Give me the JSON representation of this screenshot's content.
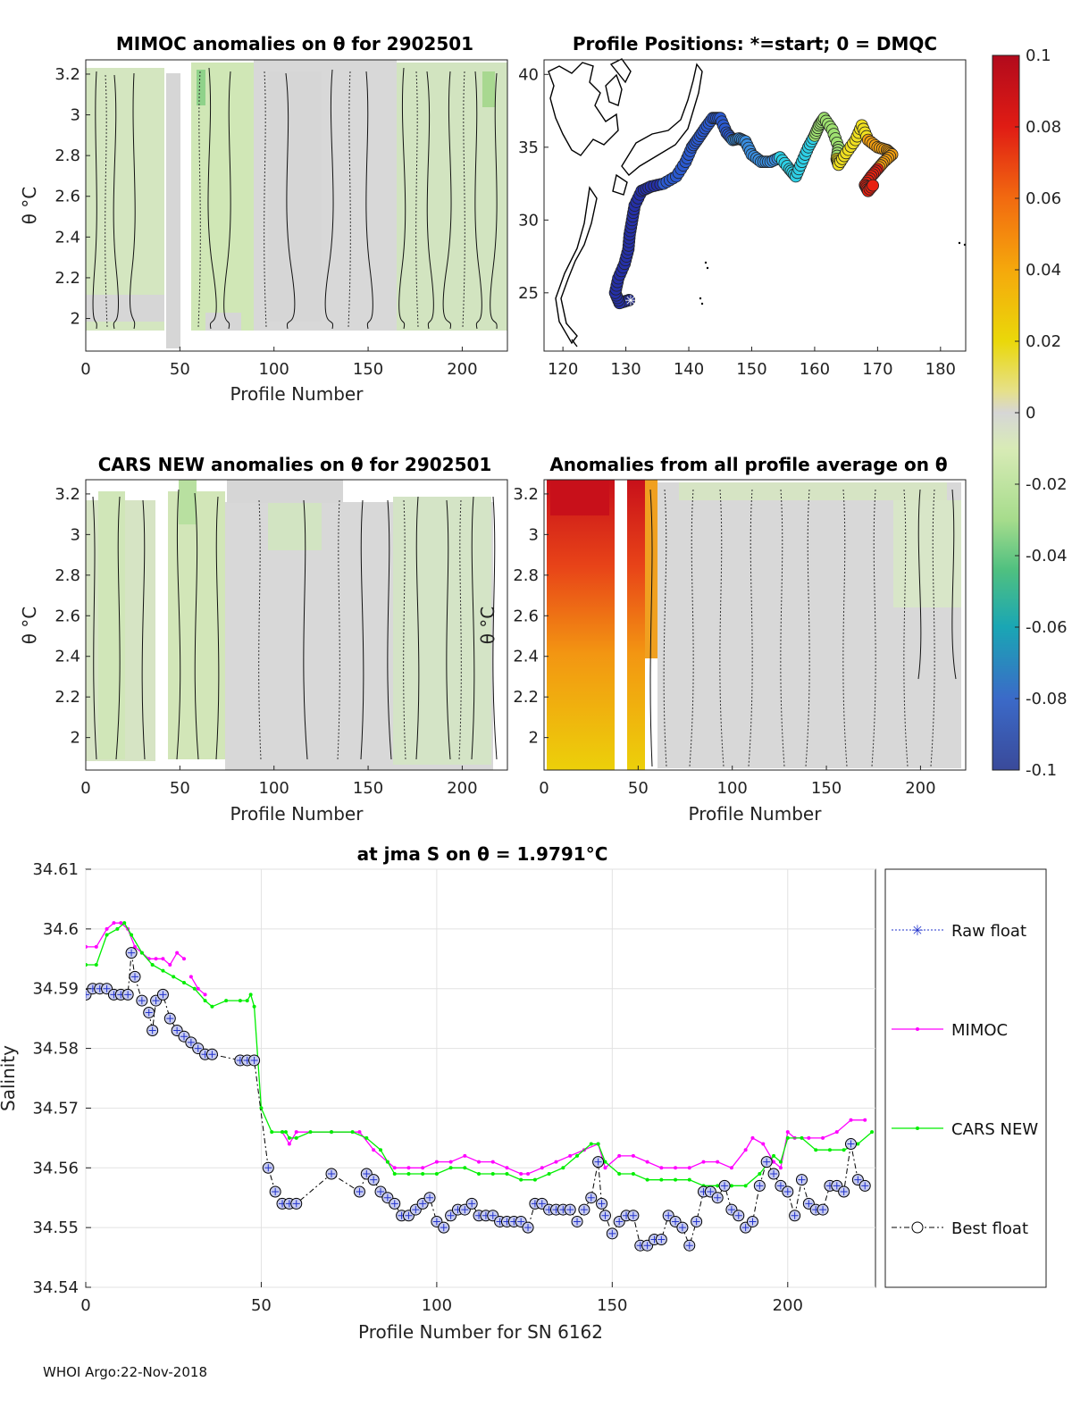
{
  "footer": "WHOI Argo:22-Nov-2018",
  "panels": [
    {
      "title": "MIMOC anomalies on θ  for 2902501",
      "xlabel": "Profile Number",
      "ylabel": "θ °C",
      "xticks": [
        0,
        50,
        100,
        150,
        200
      ],
      "yticks": [
        "3.2",
        "3",
        "2.8",
        "2.6",
        "2.4",
        "2.2",
        "2"
      ],
      "xlim": [
        0,
        224
      ],
      "ylim": [
        1.84,
        3.27
      ]
    },
    {
      "title": "Profile Positions: *=start; 0 = DMQC",
      "xlabel": "",
      "ylabel": "",
      "xticks": [
        120,
        130,
        140,
        150,
        160,
        170,
        180
      ],
      "yticks": [
        "40",
        "35",
        "30",
        "25"
      ],
      "xlim": [
        117,
        184
      ],
      "ylim": [
        21,
        41
      ]
    },
    {
      "title": "CARS NEW anomalies on θ for 2902501",
      "xlabel": "Profile Number",
      "ylabel": "θ °C",
      "xticks": [
        0,
        50,
        100,
        150,
        200
      ],
      "yticks": [
        "3.2",
        "3",
        "2.8",
        "2.6",
        "2.4",
        "2.2",
        "2"
      ],
      "xlim": [
        0,
        224
      ],
      "ylim": [
        1.84,
        3.27
      ]
    },
    {
      "title": "Anomalies from all profile average on θ",
      "xlabel": "Profile Number",
      "ylabel": "θ °C",
      "xticks": [
        0,
        50,
        100,
        150,
        200
      ],
      "yticks": [
        "3.2",
        "3",
        "2.8",
        "2.6",
        "2.4",
        "2.2",
        "2"
      ],
      "xlim": [
        0,
        224
      ],
      "ylim": [
        1.84,
        3.27
      ]
    }
  ],
  "colorbar": {
    "ticks": [
      "0.1",
      "0.08",
      "0.06",
      "0.04",
      "0.02",
      "0",
      "-0.02",
      "-0.04",
      "-0.06",
      "-0.08",
      "-0.1"
    ],
    "range": [
      -0.1,
      0.1
    ]
  },
  "chart_data": {
    "type": "line",
    "title": "at jma S on θ = 1.9791°C",
    "xlabel": "Profile Number for SN 6162",
    "ylabel": "Salinity",
    "xlim": [
      0,
      225
    ],
    "ylim": [
      34.54,
      34.61
    ],
    "xticks": [
      0,
      50,
      100,
      150,
      200
    ],
    "yticks": [
      "34.61",
      "34.6",
      "34.59",
      "34.58",
      "34.57",
      "34.56",
      "34.55",
      "34.54"
    ],
    "grid": true,
    "legend": [
      "Raw float",
      "MIMOC",
      "CARS NEW",
      "Best float"
    ],
    "series": [
      {
        "name": "MIMOC",
        "color": "#ff00ff",
        "x": [
          0,
          3,
          6,
          8,
          10,
          12,
          14,
          16,
          18,
          20,
          22,
          24,
          26,
          28
        ],
        "y": [
          34.597,
          34.597,
          34.6,
          34.601,
          34.601,
          34.6,
          34.597,
          34.596,
          34.595,
          34.595,
          34.595,
          34.594,
          34.596,
          34.595
        ]
      },
      {
        "name": "MIMOC",
        "color": "#ff00ff",
        "x": [
          30,
          32,
          34
        ],
        "y": [
          34.592,
          34.59,
          34.589
        ]
      },
      {
        "name": "MIMOC",
        "color": "#ff00ff",
        "x": [
          56,
          58,
          60,
          70,
          78,
          82,
          86,
          88,
          92,
          96,
          100,
          104,
          108,
          112,
          116,
          120,
          124,
          126,
          130,
          134,
          138,
          142,
          146,
          148,
          152,
          156,
          160,
          164,
          168,
          172,
          176,
          180,
          184,
          188,
          190,
          193,
          196,
          198,
          200,
          202,
          206,
          210,
          214,
          218,
          222
        ],
        "y": [
          34.566,
          34.564,
          34.566,
          34.566,
          34.566,
          34.563,
          34.561,
          34.56,
          34.56,
          34.56,
          34.561,
          34.561,
          34.562,
          34.561,
          34.561,
          34.56,
          34.559,
          34.559,
          34.56,
          34.561,
          34.562,
          34.563,
          34.564,
          34.56,
          34.562,
          34.562,
          34.561,
          34.56,
          34.56,
          34.56,
          34.561,
          34.561,
          34.56,
          34.563,
          34.565,
          34.564,
          34.561,
          34.56,
          34.566,
          34.565,
          34.565,
          34.565,
          34.566,
          34.568,
          34.568
        ]
      },
      {
        "name": "CARS NEW",
        "color": "#00ee00",
        "x": [
          0,
          3,
          6,
          9,
          11,
          13,
          16,
          19,
          22,
          25,
          28,
          31,
          34,
          36,
          40,
          44,
          46,
          47,
          48,
          50,
          53,
          56,
          57,
          58,
          60,
          64,
          70,
          76,
          80,
          84,
          86,
          88,
          92,
          96,
          100,
          104,
          108,
          112,
          116,
          120,
          124,
          128,
          132,
          136,
          140,
          144,
          146,
          148,
          152,
          156,
          160,
          164,
          168,
          172,
          176,
          180,
          184,
          188,
          192,
          196,
          198,
          200,
          204,
          208,
          212,
          216,
          220,
          224
        ],
        "y": [
          34.594,
          34.594,
          34.599,
          34.6,
          34.601,
          34.599,
          34.596,
          34.594,
          34.593,
          34.592,
          34.591,
          34.59,
          34.588,
          34.587,
          34.588,
          34.588,
          34.588,
          34.589,
          34.587,
          34.57,
          34.566,
          34.566,
          34.566,
          34.565,
          34.565,
          34.566,
          34.566,
          34.566,
          34.565,
          34.563,
          34.561,
          34.559,
          34.559,
          34.559,
          34.559,
          34.56,
          34.56,
          34.559,
          34.559,
          34.559,
          34.558,
          34.558,
          34.559,
          34.56,
          34.562,
          34.564,
          34.564,
          34.561,
          34.559,
          34.559,
          34.558,
          34.558,
          34.558,
          34.558,
          34.557,
          34.557,
          34.557,
          34.557,
          34.559,
          34.562,
          34.561,
          34.565,
          34.565,
          34.563,
          34.563,
          34.563,
          34.564,
          34.566
        ]
      },
      {
        "name": "Best float",
        "color": "#000000",
        "x": [
          0,
          2,
          4,
          6,
          8,
          10,
          12,
          13,
          14,
          16,
          18,
          19,
          20,
          22,
          24,
          26,
          28,
          30,
          32,
          34,
          36,
          44,
          46,
          48,
          52,
          54,
          56,
          58,
          60,
          70,
          78,
          80,
          82,
          84,
          86,
          88,
          90,
          92,
          94,
          96,
          98,
          100,
          102,
          104,
          106,
          108,
          110,
          112,
          114,
          116,
          118,
          120,
          122,
          124,
          126,
          128,
          130,
          132,
          134,
          136,
          138,
          140,
          142,
          144,
          146,
          147,
          148,
          150,
          152,
          154,
          156,
          158,
          160,
          162,
          164,
          166,
          168,
          170,
          172,
          174,
          176,
          178,
          180,
          182,
          184,
          186,
          188,
          190,
          192,
          194,
          196,
          198,
          200,
          202,
          204,
          206,
          208,
          210,
          212,
          214,
          216,
          218,
          220,
          222
        ],
        "y": [
          34.589,
          34.59,
          34.59,
          34.59,
          34.589,
          34.589,
          34.589,
          34.596,
          34.592,
          34.588,
          34.586,
          34.583,
          34.588,
          34.589,
          34.585,
          34.583,
          34.582,
          34.581,
          34.58,
          34.579,
          34.579,
          34.578,
          34.578,
          34.578,
          34.56,
          34.556,
          34.554,
          34.554,
          34.554,
          34.559,
          34.556,
          34.559,
          34.558,
          34.556,
          34.555,
          34.554,
          34.552,
          34.552,
          34.553,
          34.554,
          34.555,
          34.551,
          34.55,
          34.552,
          34.553,
          34.553,
          34.554,
          34.552,
          34.552,
          34.552,
          34.551,
          34.551,
          34.551,
          34.551,
          34.55,
          34.554,
          34.554,
          34.553,
          34.553,
          34.553,
          34.553,
          34.551,
          34.553,
          34.555,
          34.561,
          34.554,
          34.552,
          34.549,
          34.551,
          34.552,
          34.552,
          34.547,
          34.547,
          34.548,
          34.548,
          34.552,
          34.551,
          34.55,
          34.547,
          34.551,
          34.556,
          34.556,
          34.555,
          34.557,
          34.553,
          34.552,
          34.55,
          34.551,
          34.557,
          34.561,
          34.559,
          34.557,
          34.556,
          34.552,
          34.558,
          34.554,
          34.553,
          34.553,
          34.557,
          34.557,
          34.556,
          34.564,
          34.558,
          34.557
        ]
      }
    ]
  }
}
